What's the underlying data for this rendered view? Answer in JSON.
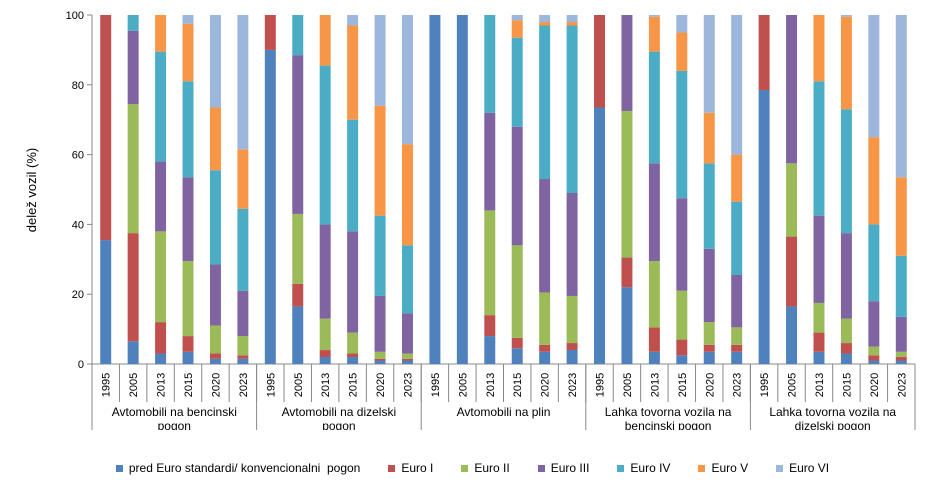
{
  "chart_data": {
    "type": "bar",
    "stacked": true,
    "ylabel": "delež vozil (%)",
    "ylim": [
      0,
      100
    ],
    "yticks": [
      0,
      20,
      40,
      60,
      80,
      100
    ],
    "legend_position": "bottom",
    "categories": [
      "1995",
      "2005",
      "2013",
      "2015",
      "2020",
      "2023"
    ],
    "groups": [
      {
        "label": "Avtomobili na bencinski pogon"
      },
      {
        "label": "Avtomobili na dizelski pogon"
      },
      {
        "label": "Avtomobili na plin"
      },
      {
        "label": "Lahka tovorna vozila na bencinski pogon"
      },
      {
        "label": "Lahka tovorna vozila na dizelski pogon"
      }
    ],
    "series": [
      {
        "name": "pred Euro standardi/ konvencionalni  pogon",
        "color": "#4F81BD",
        "values": [
          [
            35.5,
            6.5,
            3.0,
            3.5,
            1.5,
            1.5
          ],
          [
            90.0,
            16.5,
            2.0,
            2.0,
            1.0,
            1.0
          ],
          [
            100,
            100,
            8.0,
            4.5,
            3.5,
            4.0
          ],
          [
            73.5,
            22.0,
            3.5,
            2.5,
            3.5,
            3.5
          ],
          [
            78.5,
            16.5,
            3.5,
            3.0,
            1.0,
            1.0
          ]
        ]
      },
      {
        "name": "Euro I",
        "color": "#C0504D",
        "values": [
          [
            64.5,
            31.0,
            9.0,
            4.5,
            1.5,
            1.0
          ],
          [
            10.0,
            6.5,
            2.0,
            1.0,
            0.5,
            0.5
          ],
          [
            0,
            0,
            6.0,
            3.0,
            2.0,
            2.0
          ],
          [
            26.5,
            8.5,
            7.0,
            4.5,
            2.0,
            2.0
          ],
          [
            21.5,
            20.0,
            5.5,
            3.0,
            1.5,
            1.0
          ]
        ]
      },
      {
        "name": "Euro II",
        "color": "#9BBB59",
        "values": [
          [
            0,
            37.0,
            26.0,
            21.5,
            8.0,
            5.5
          ],
          [
            0,
            20.0,
            9.0,
            6.0,
            2.0,
            1.5
          ],
          [
            0,
            0,
            30.0,
            26.5,
            15.0,
            13.5
          ],
          [
            0,
            42.0,
            19.0,
            14.0,
            6.5,
            5.0
          ],
          [
            0,
            21.0,
            8.5,
            7.0,
            2.5,
            1.5
          ]
        ]
      },
      {
        "name": "Euro III",
        "color": "#8064A2",
        "values": [
          [
            0,
            21.0,
            20.0,
            24.0,
            17.5,
            13.0
          ],
          [
            0,
            45.5,
            27.0,
            29.0,
            16.0,
            11.5
          ],
          [
            0,
            0,
            28.0,
            34.0,
            32.5,
            29.5
          ],
          [
            0,
            27.5,
            28.0,
            26.5,
            21.0,
            15.0
          ],
          [
            0,
            42.5,
            25.0,
            24.5,
            13.0,
            10.0
          ]
        ]
      },
      {
        "name": "Euro IV",
        "color": "#4BACC6",
        "values": [
          [
            0,
            4.5,
            31.5,
            27.5,
            27.0,
            23.5
          ],
          [
            0,
            11.5,
            45.5,
            32.0,
            23.0,
            19.5
          ],
          [
            0,
            0,
            28.0,
            25.5,
            44.0,
            48.0
          ],
          [
            0,
            0,
            32.0,
            36.5,
            24.5,
            21.0
          ],
          [
            0,
            0,
            38.5,
            35.5,
            22.0,
            17.5
          ]
        ]
      },
      {
        "name": "Euro V",
        "color": "#F79646",
        "values": [
          [
            0,
            0,
            10.5,
            16.5,
            18.0,
            17.0
          ],
          [
            0,
            0,
            14.5,
            27.0,
            31.5,
            29.0
          ],
          [
            0,
            0,
            0,
            5.0,
            1.0,
            1.0
          ],
          [
            0,
            0,
            10.0,
            11.0,
            14.5,
            13.5
          ],
          [
            0,
            0,
            19.0,
            26.5,
            25.0,
            22.5
          ]
        ]
      },
      {
        "name": "Euro VI",
        "color": "#9DB6DC",
        "values": [
          [
            0,
            0,
            0,
            2.5,
            26.5,
            38.5
          ],
          [
            0,
            0,
            0,
            3.0,
            26.0,
            37.0
          ],
          [
            0,
            0,
            0,
            1.5,
            2.0,
            2.0
          ],
          [
            0,
            0,
            0.5,
            5.0,
            28.0,
            40.0
          ],
          [
            0,
            0,
            0,
            0.5,
            35.0,
            46.5
          ]
        ]
      }
    ]
  }
}
